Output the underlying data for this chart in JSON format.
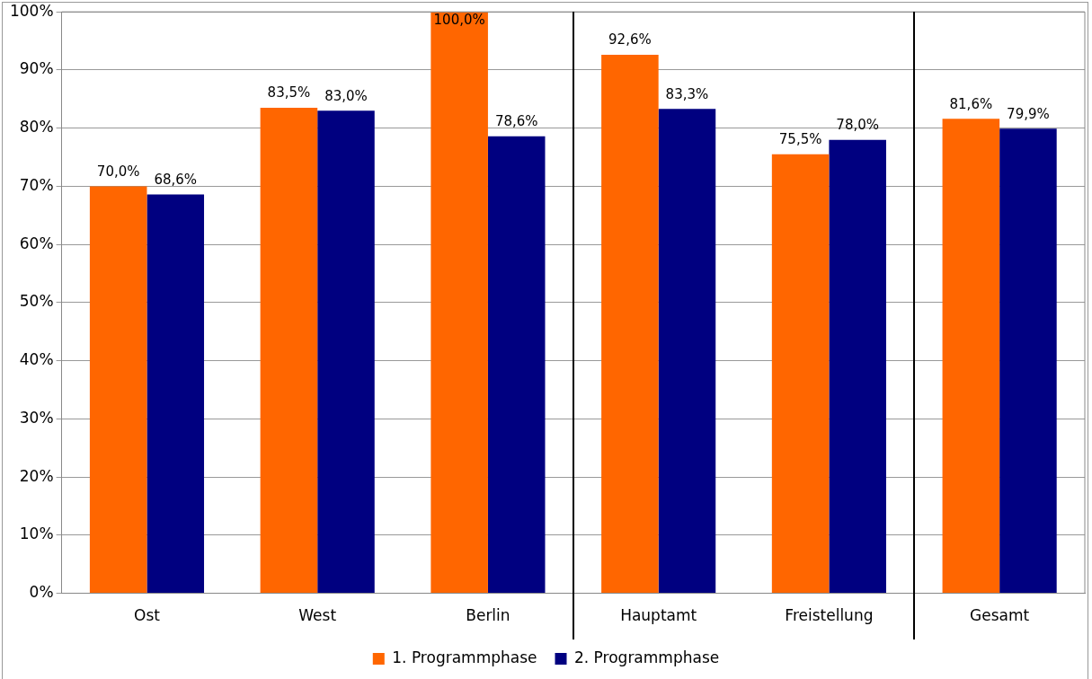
{
  "chart_data": {
    "type": "bar",
    "categories": [
      "Ost",
      "West",
      "Berlin",
      "Hauptamt",
      "Freistellung",
      "Gesamt"
    ],
    "series": [
      {
        "name": "1. Programmphase",
        "color": "#ff6600",
        "values": [
          70.0,
          83.5,
          100.0,
          92.6,
          75.5,
          81.6
        ],
        "value_labels": [
          "70,0%",
          "83,5%",
          "100,0%",
          "92,6%",
          "75,5%",
          "81,6%"
        ]
      },
      {
        "name": "2. Programmphase",
        "color": "#000080",
        "values": [
          68.6,
          83.0,
          78.6,
          83.3,
          78.0,
          79.9
        ],
        "value_labels": [
          "68,6%",
          "83,0%",
          "78,6%",
          "83,3%",
          "78,0%",
          "79,9%"
        ]
      }
    ],
    "ylim": [
      0,
      100
    ],
    "yticks": [
      {
        "value": 0,
        "label": "0%"
      },
      {
        "value": 10,
        "label": "10%"
      },
      {
        "value": 20,
        "label": "20%"
      },
      {
        "value": 30,
        "label": "30%"
      },
      {
        "value": 40,
        "label": "40%"
      },
      {
        "value": 50,
        "label": "50%"
      },
      {
        "value": 60,
        "label": "60%"
      },
      {
        "value": 70,
        "label": "70%"
      },
      {
        "value": 80,
        "label": "80%"
      },
      {
        "value": 90,
        "label": "90%"
      },
      {
        "value": 100,
        "label": "100%"
      }
    ],
    "grid": "y",
    "legend": "bottom"
  }
}
